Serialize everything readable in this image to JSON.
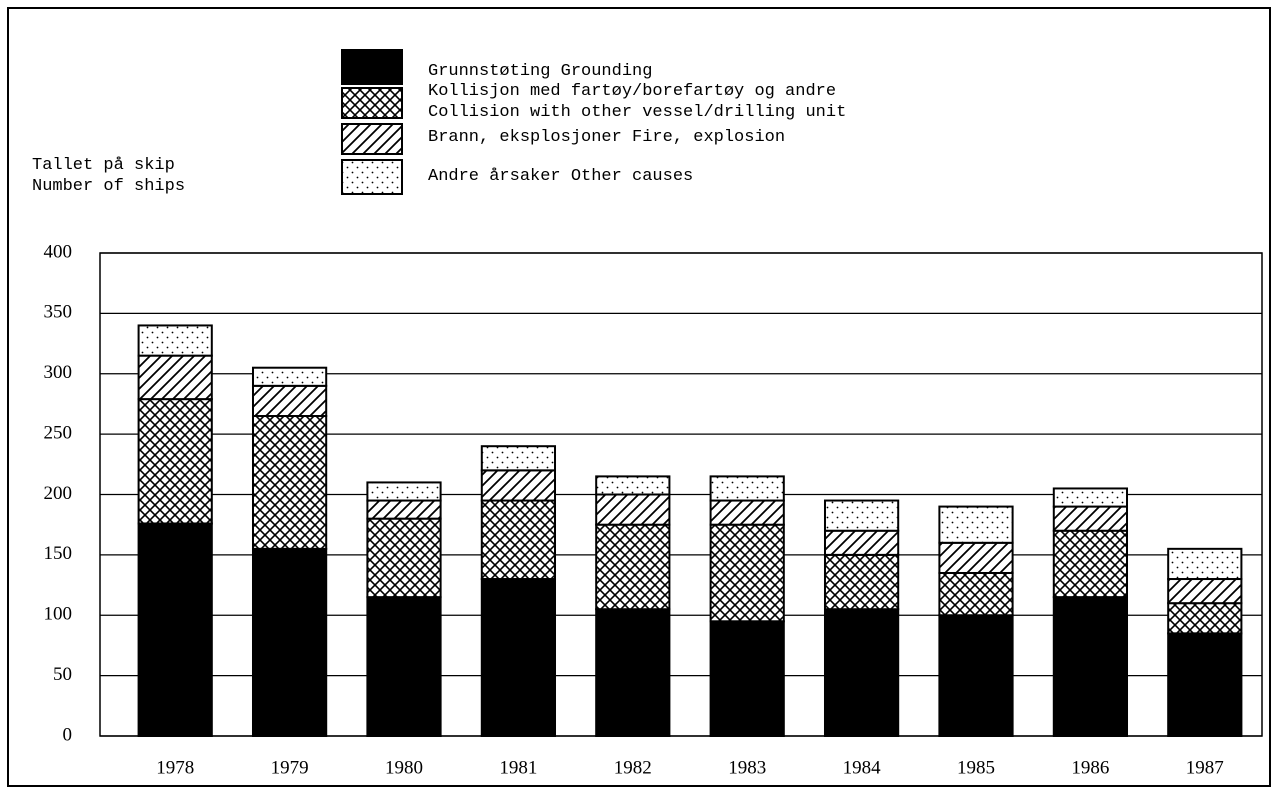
{
  "chart_data": {
    "type": "stacked_bar",
    "y_label": "Tallet på skip\nNumber of ships",
    "categories": [
      "1978",
      "1979",
      "1980",
      "1981",
      "1982",
      "1983",
      "1984",
      "1985",
      "1986",
      "1987"
    ],
    "series": [
      {
        "name": "Grunnstøting  Grounding",
        "color": "#000000",
        "pattern": "solid",
        "values": [
          176,
          155,
          115,
          130,
          105,
          95,
          105,
          100,
          115,
          85
        ]
      },
      {
        "name": "Kollisjon med fartøy/borefartøy og andre\nCollision with other vessel/drilling unit",
        "color": "#000000",
        "pattern": "crosshatch",
        "values": [
          103,
          110,
          65,
          65,
          70,
          80,
          45,
          35,
          55,
          25
        ]
      },
      {
        "name": "Brann, eksplosjoner  Fire, explosion",
        "color": "#000000",
        "pattern": "hatch",
        "values": [
          36,
          25,
          15,
          25,
          25,
          20,
          20,
          25,
          20,
          20
        ]
      },
      {
        "name": "Andre årsaker  Other causes",
        "color": "#000000",
        "pattern": "dots",
        "values": [
          25,
          15,
          15,
          20,
          15,
          20,
          25,
          30,
          15,
          25
        ]
      }
    ],
    "ylim": [
      0,
      400
    ],
    "yticks": [
      0,
      50,
      100,
      150,
      200,
      250,
      300,
      350,
      400
    ],
    "grid": true
  }
}
